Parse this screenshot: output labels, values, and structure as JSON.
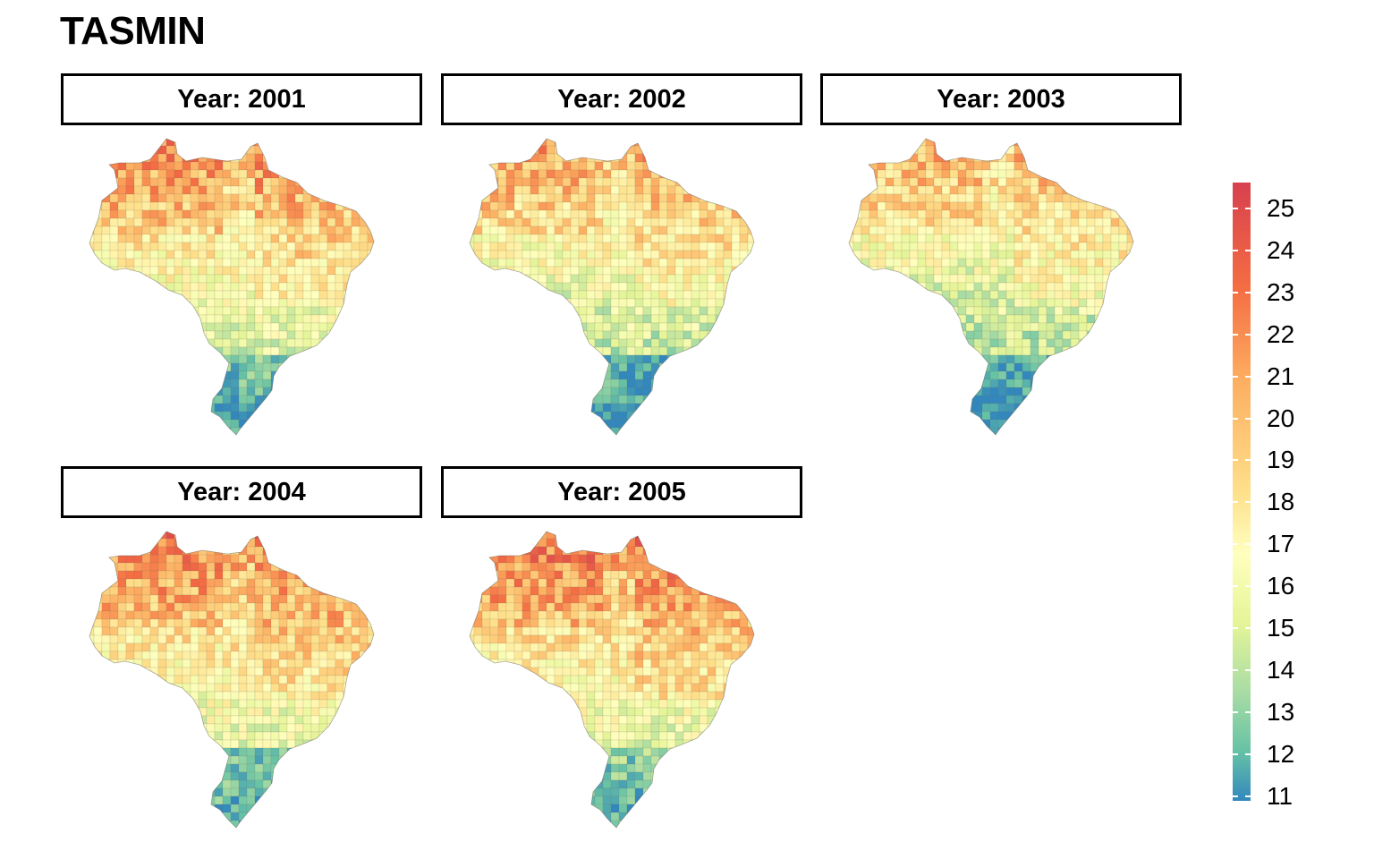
{
  "title": "TASMIN",
  "panels": [
    {
      "label": "Year: 2001",
      "year": 2001
    },
    {
      "label": "Year: 2002",
      "year": 2002
    },
    {
      "label": "Year: 2003",
      "year": 2003
    },
    {
      "label": "Year: 2004",
      "year": 2004
    },
    {
      "label": "Year: 2005",
      "year": 2005
    }
  ],
  "legend": {
    "min": 11,
    "max": 25,
    "ticks": [
      "25",
      "24",
      "23",
      "22",
      "21",
      "20",
      "19",
      "18",
      "17",
      "16",
      "15",
      "14",
      "13",
      "12",
      "11"
    ],
    "colors": [
      "#d7414e",
      "#f46d43",
      "#fdae61",
      "#fee08b",
      "#ffffbf",
      "#e6f598",
      "#abdda4",
      "#66c2a5",
      "#3288bd"
    ]
  }
}
